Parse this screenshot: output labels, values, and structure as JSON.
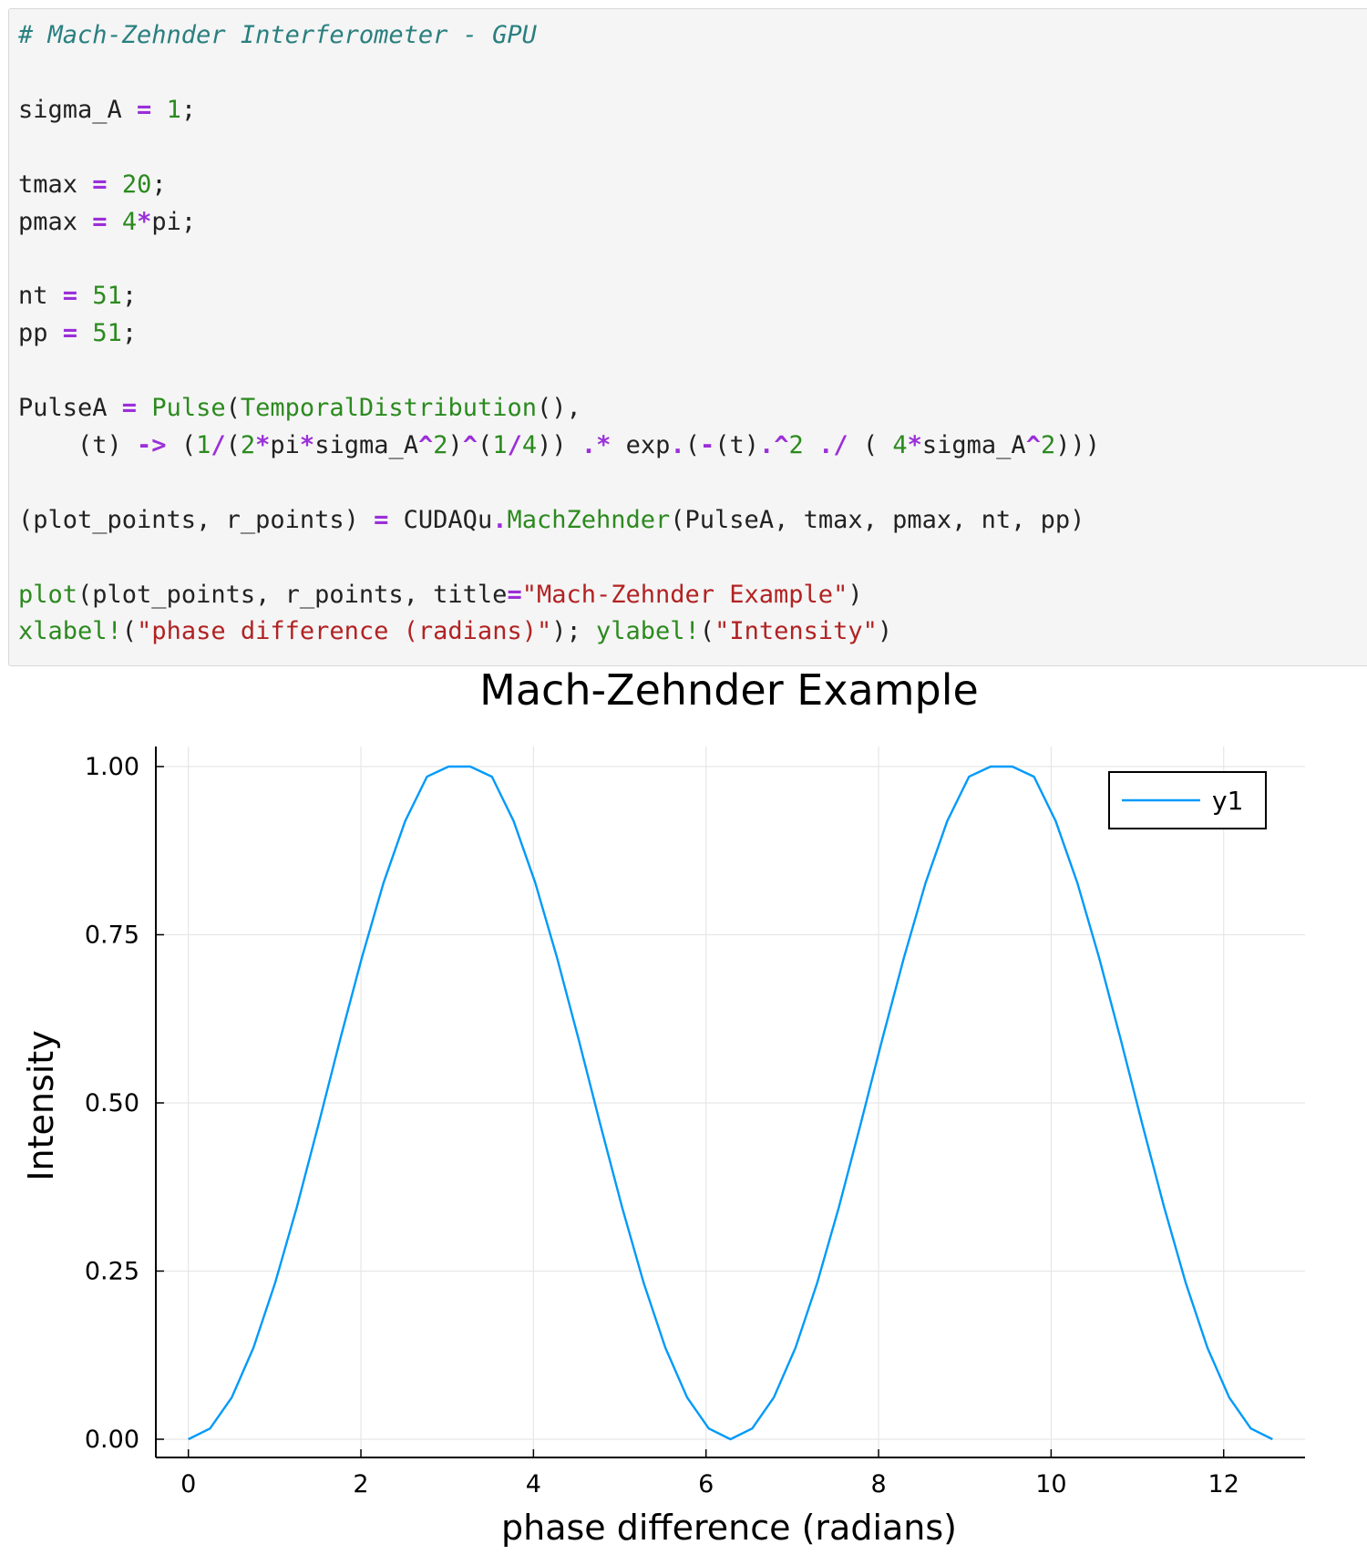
{
  "code_cell": {
    "lines": [
      [
        {
          "t": "# Mach-Zehnder Interferometer - GPU",
          "c": "comment"
        }
      ],
      [],
      [
        {
          "t": "sigma_A ",
          "c": "plain"
        },
        {
          "t": "=",
          "c": "op"
        },
        {
          "t": " ",
          "c": "plain"
        },
        {
          "t": "1",
          "c": "num"
        },
        {
          "t": ";",
          "c": "plain"
        }
      ],
      [],
      [
        {
          "t": "tmax ",
          "c": "plain"
        },
        {
          "t": "=",
          "c": "op"
        },
        {
          "t": " ",
          "c": "plain"
        },
        {
          "t": "20",
          "c": "num"
        },
        {
          "t": ";",
          "c": "plain"
        }
      ],
      [
        {
          "t": "pmax ",
          "c": "plain"
        },
        {
          "t": "=",
          "c": "op"
        },
        {
          "t": " ",
          "c": "plain"
        },
        {
          "t": "4",
          "c": "num"
        },
        {
          "t": "*",
          "c": "op"
        },
        {
          "t": "pi;",
          "c": "plain"
        }
      ],
      [],
      [
        {
          "t": "nt ",
          "c": "plain"
        },
        {
          "t": "=",
          "c": "op"
        },
        {
          "t": " ",
          "c": "plain"
        },
        {
          "t": "51",
          "c": "num"
        },
        {
          "t": ";",
          "c": "plain"
        }
      ],
      [
        {
          "t": "pp ",
          "c": "plain"
        },
        {
          "t": "=",
          "c": "op"
        },
        {
          "t": " ",
          "c": "plain"
        },
        {
          "t": "51",
          "c": "num"
        },
        {
          "t": ";",
          "c": "plain"
        }
      ],
      [],
      [
        {
          "t": "PulseA ",
          "c": "plain"
        },
        {
          "t": "=",
          "c": "op"
        },
        {
          "t": " ",
          "c": "plain"
        },
        {
          "t": "Pulse",
          "c": "fn"
        },
        {
          "t": "(",
          "c": "plain"
        },
        {
          "t": "TemporalDistribution",
          "c": "fn"
        },
        {
          "t": "(),",
          "c": "plain"
        }
      ],
      [
        {
          "t": "    (t) ",
          "c": "plain"
        },
        {
          "t": "->",
          "c": "op"
        },
        {
          "t": " (",
          "c": "plain"
        },
        {
          "t": "1",
          "c": "num"
        },
        {
          "t": "/",
          "c": "op"
        },
        {
          "t": "(",
          "c": "plain"
        },
        {
          "t": "2",
          "c": "num"
        },
        {
          "t": "*",
          "c": "op"
        },
        {
          "t": "pi",
          "c": "plain"
        },
        {
          "t": "*",
          "c": "op"
        },
        {
          "t": "sigma_A",
          "c": "plain"
        },
        {
          "t": "^",
          "c": "op"
        },
        {
          "t": "2",
          "c": "num"
        },
        {
          "t": ")",
          "c": "plain"
        },
        {
          "t": "^",
          "c": "op"
        },
        {
          "t": "(",
          "c": "plain"
        },
        {
          "t": "1",
          "c": "num"
        },
        {
          "t": "/",
          "c": "op"
        },
        {
          "t": "4",
          "c": "num"
        },
        {
          "t": ")) ",
          "c": "plain"
        },
        {
          "t": ".*",
          "c": "op"
        },
        {
          "t": " exp",
          "c": "plain"
        },
        {
          "t": ".",
          "c": "op"
        },
        {
          "t": "(",
          "c": "plain"
        },
        {
          "t": "-",
          "c": "op"
        },
        {
          "t": "(t)",
          "c": "plain"
        },
        {
          "t": ".^",
          "c": "op"
        },
        {
          "t": "2",
          "c": "num"
        },
        {
          "t": " ",
          "c": "plain"
        },
        {
          "t": "./",
          "c": "op"
        },
        {
          "t": " ( ",
          "c": "plain"
        },
        {
          "t": "4",
          "c": "num"
        },
        {
          "t": "*",
          "c": "op"
        },
        {
          "t": "sigma_A",
          "c": "plain"
        },
        {
          "t": "^",
          "c": "op"
        },
        {
          "t": "2",
          "c": "num"
        },
        {
          "t": ")))",
          "c": "plain"
        }
      ],
      [],
      [
        {
          "t": "(plot_points, r_points) ",
          "c": "plain"
        },
        {
          "t": "=",
          "c": "op"
        },
        {
          "t": " CUDAQu",
          "c": "plain"
        },
        {
          "t": ".",
          "c": "op"
        },
        {
          "t": "MachZehnder",
          "c": "fn"
        },
        {
          "t": "(PulseA, tmax, pmax, nt, pp)",
          "c": "plain"
        }
      ],
      [],
      [
        {
          "t": "plot",
          "c": "fn"
        },
        {
          "t": "(plot_points, r_points, title",
          "c": "plain"
        },
        {
          "t": "=",
          "c": "op"
        },
        {
          "t": "\"Mach-Zehnder Example\"",
          "c": "str"
        },
        {
          "t": ")",
          "c": "plain"
        }
      ],
      [
        {
          "t": "xlabel!",
          "c": "fn"
        },
        {
          "t": "(",
          "c": "plain"
        },
        {
          "t": "\"phase difference (radians)\"",
          "c": "str"
        },
        {
          "t": "); ",
          "c": "plain"
        },
        {
          "t": "ylabel!",
          "c": "fn"
        },
        {
          "t": "(",
          "c": "plain"
        },
        {
          "t": "\"Intensity\"",
          "c": "str"
        },
        {
          "t": ")",
          "c": "plain"
        }
      ]
    ],
    "colors": {
      "comment": "#2a7f7f",
      "op": "#9b2fd9",
      "num": "#2b8a1e",
      "fn": "#2b8a1e",
      "str": "#b22222",
      "plain": "#222222"
    }
  },
  "chart_data": {
    "type": "line",
    "title": "Mach-Zehnder Example",
    "xlabel": "phase difference (radians)",
    "ylabel": "Intensity",
    "xlim": [
      -0.377,
      12.943
    ],
    "ylim": [
      -0.03,
      1.0
    ],
    "xticks": [
      0,
      2,
      4,
      6,
      8,
      10,
      12
    ],
    "xtick_labels": [
      "0",
      "2",
      "4",
      "6",
      "8",
      "10",
      "12"
    ],
    "yticks": [
      0,
      0.25,
      0.5,
      0.75,
      1.0
    ],
    "ytick_labels": [
      "0.00",
      "0.25",
      "0.50",
      "0.75",
      "1.00"
    ],
    "grid": true,
    "legend_position": "top-right",
    "line_color": "#009af9",
    "series": [
      {
        "name": "y1",
        "x": [
          0,
          0.251,
          0.503,
          0.754,
          1.005,
          1.257,
          1.508,
          1.759,
          2.011,
          2.262,
          2.513,
          2.765,
          3.016,
          3.267,
          3.519,
          3.77,
          4.021,
          4.273,
          4.524,
          4.775,
          5.027,
          5.278,
          5.529,
          5.781,
          6.032,
          6.283,
          6.535,
          6.786,
          7.037,
          7.288,
          7.54,
          7.791,
          8.042,
          8.294,
          8.545,
          8.796,
          9.048,
          9.299,
          9.55,
          9.802,
          10.053,
          10.304,
          10.556,
          10.807,
          11.058,
          11.31,
          11.561,
          11.812,
          12.064,
          12.315,
          12.566
        ],
        "values": [
          0.0,
          0.016,
          0.062,
          0.136,
          0.232,
          0.345,
          0.468,
          0.594,
          0.716,
          0.827,
          0.919,
          0.985,
          1.0,
          1.0,
          0.985,
          0.919,
          0.827,
          0.716,
          0.594,
          0.468,
          0.345,
          0.232,
          0.136,
          0.062,
          0.016,
          0.0,
          0.016,
          0.062,
          0.136,
          0.232,
          0.345,
          0.468,
          0.594,
          0.716,
          0.827,
          0.919,
          0.985,
          1.0,
          1.0,
          0.985,
          0.919,
          0.827,
          0.716,
          0.594,
          0.468,
          0.345,
          0.232,
          0.136,
          0.062,
          0.016,
          0.0
        ]
      }
    ]
  }
}
